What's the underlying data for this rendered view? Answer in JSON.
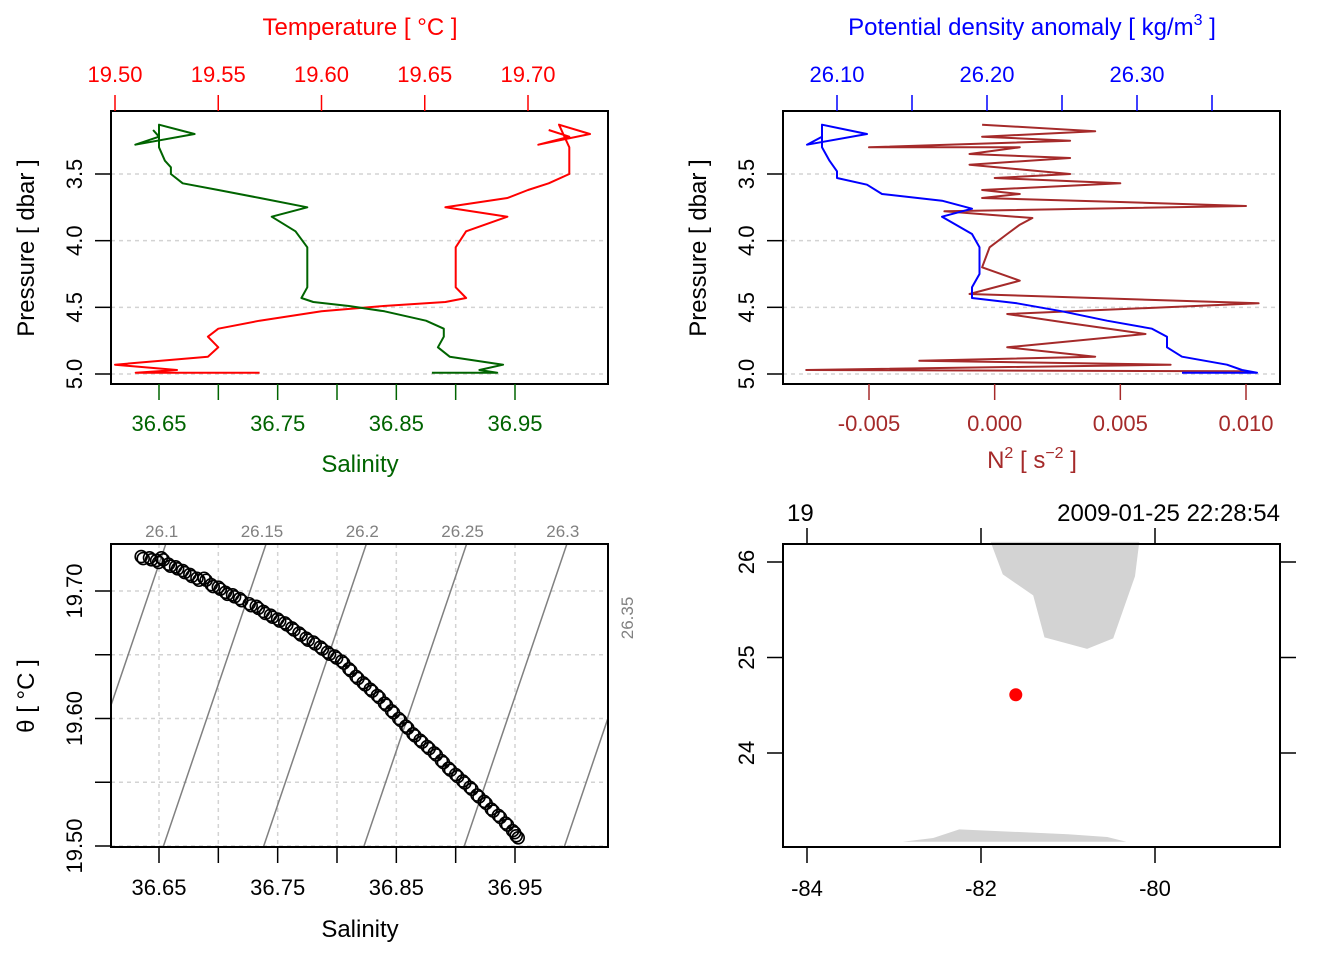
{
  "chart_data": [
    {
      "id": "profile-ts",
      "type": "line",
      "top_axis": {
        "label": "Temperature [ °C ]",
        "color": "#ff0000",
        "ticks": [
          19.5,
          19.55,
          19.6,
          19.65,
          19.7
        ],
        "tick_labels": [
          "19.50",
          "19.55",
          "19.60",
          "19.65",
          "19.70"
        ],
        "range": [
          19.4985,
          19.739
        ]
      },
      "bottom_axis": {
        "label": "Salinity",
        "color": "#006400",
        "ticks": [
          36.65,
          36.7,
          36.75,
          36.8,
          36.85,
          36.9,
          36.95
        ],
        "tick_labels": [
          "36.65",
          "",
          "36.75",
          "",
          "36.85",
          "",
          "36.95"
        ],
        "range": [
          36.6129,
          36.957
        ]
      },
      "left_axis": {
        "label": "Pressure [ dbar ]",
        "ticks": [
          3.5,
          4.0,
          4.5,
          5.0
        ],
        "tick_labels": [
          "3.5",
          "4.0",
          "4.5",
          "5.0"
        ],
        "range": [
          3.03,
          5.08
        ],
        "reversed": true
      },
      "grid": "horizontal-dashed",
      "series": [
        {
          "name": "Temperature",
          "color": "#ff0000",
          "axis": "top",
          "points": [
            [
              19.71,
              3.17
            ],
            [
              19.72,
              3.22
            ],
            [
              19.705,
              3.28
            ],
            [
              19.73,
              3.2
            ],
            [
              19.715,
              3.13
            ],
            [
              19.72,
              3.3
            ],
            [
              19.72,
              3.4
            ],
            [
              19.72,
              3.45
            ],
            [
              19.72,
              3.5
            ],
            [
              19.71,
              3.57
            ],
            [
              19.7,
              3.62
            ],
            [
              19.69,
              3.68
            ],
            [
              19.66,
              3.75
            ],
            [
              19.69,
              3.82
            ],
            [
              19.67,
              3.93
            ],
            [
              19.665,
              4.05
            ],
            [
              19.665,
              4.2
            ],
            [
              19.665,
              4.35
            ],
            [
              19.67,
              4.43
            ],
            [
              19.66,
              4.46
            ],
            [
              19.63,
              4.49
            ],
            [
              19.6,
              4.53
            ],
            [
              19.57,
              4.6
            ],
            [
              19.55,
              4.66
            ],
            [
              19.545,
              4.72
            ],
            [
              19.55,
              4.8
            ],
            [
              19.545,
              4.87
            ],
            [
              19.5,
              4.93
            ],
            [
              19.53,
              4.97
            ],
            [
              19.51,
              4.99
            ],
            [
              19.57,
              4.99
            ]
          ]
        },
        {
          "name": "Salinity",
          "color": "#006400",
          "axis": "bottom",
          "points": [
            [
              36.645,
              3.17
            ],
            [
              36.65,
              3.22
            ],
            [
              36.63,
              3.28
            ],
            [
              36.68,
              3.2
            ],
            [
              36.65,
              3.13
            ],
            [
              36.65,
              3.3
            ],
            [
              36.655,
              3.4
            ],
            [
              36.66,
              3.45
            ],
            [
              36.66,
              3.5
            ],
            [
              36.67,
              3.57
            ],
            [
              36.7,
              3.62
            ],
            [
              36.735,
              3.68
            ],
            [
              36.775,
              3.75
            ],
            [
              36.745,
              3.82
            ],
            [
              36.765,
              3.93
            ],
            [
              36.775,
              4.05
            ],
            [
              36.775,
              4.2
            ],
            [
              36.775,
              4.35
            ],
            [
              36.77,
              4.43
            ],
            [
              36.78,
              4.46
            ],
            [
              36.81,
              4.49
            ],
            [
              36.84,
              4.53
            ],
            [
              36.875,
              4.6
            ],
            [
              36.89,
              4.66
            ],
            [
              36.89,
              4.72
            ],
            [
              36.885,
              4.8
            ],
            [
              36.895,
              4.87
            ],
            [
              36.94,
              4.93
            ],
            [
              36.92,
              4.97
            ],
            [
              36.935,
              4.99
            ],
            [
              36.88,
              4.99
            ]
          ]
        }
      ]
    },
    {
      "id": "profile-density-n2",
      "type": "line",
      "top_axis": {
        "label": "Potential density anomaly [ kg/m³ ]",
        "color": "#0000ff",
        "ticks": [
          26.1,
          26.15,
          26.2,
          26.25,
          26.3,
          26.35
        ],
        "tick_labels": [
          "26.10",
          "",
          "26.20",
          "",
          "26.30",
          ""
        ],
        "range": [
          26.064,
          26.3953
        ]
      },
      "bottom_axis": {
        "label": "N² [ s⁻² ]",
        "color": "#a52a2a",
        "ticks": [
          -0.005,
          0.0,
          0.005,
          0.01
        ],
        "tick_labels": [
          "-0.005",
          "0.000",
          "0.005",
          "0.010"
        ],
        "range": [
          -0.00845,
          0.01132
        ]
      },
      "left_axis": {
        "label": "Pressure [ dbar ]",
        "ticks": [
          3.5,
          4.0,
          4.5,
          5.0
        ],
        "tick_labels": [
          "3.5",
          "4.0",
          "4.5",
          "5.0"
        ],
        "range": [
          3.03,
          5.08
        ],
        "reversed": true
      },
      "grid": "horizontal-dashed",
      "series": [
        {
          "name": "Potential density anomaly",
          "color": "#0000ff",
          "axis": "top",
          "points": [
            [
              26.09,
              3.17
            ],
            [
              26.09,
              3.22
            ],
            [
              26.08,
              3.28
            ],
            [
              26.12,
              3.2
            ],
            [
              26.09,
              3.13
            ],
            [
              26.09,
              3.3
            ],
            [
              26.095,
              3.4
            ],
            [
              26.1,
              3.48
            ],
            [
              26.1,
              3.53
            ],
            [
              26.12,
              3.58
            ],
            [
              26.13,
              3.65
            ],
            [
              26.17,
              3.7
            ],
            [
              26.19,
              3.76
            ],
            [
              26.17,
              3.82
            ],
            [
              26.19,
              3.95
            ],
            [
              26.195,
              4.05
            ],
            [
              26.195,
              4.25
            ],
            [
              26.19,
              4.35
            ],
            [
              26.19,
              4.43
            ],
            [
              26.22,
              4.47
            ],
            [
              26.25,
              4.53
            ],
            [
              26.28,
              4.6
            ],
            [
              26.31,
              4.66
            ],
            [
              26.32,
              4.72
            ],
            [
              26.32,
              4.8
            ],
            [
              26.33,
              4.87
            ],
            [
              26.36,
              4.93
            ],
            [
              26.37,
              4.97
            ],
            [
              26.38,
              4.99
            ],
            [
              26.33,
              4.99
            ]
          ]
        },
        {
          "name": "N2",
          "color": "#a52a2a",
          "axis": "bottom",
          "points": [
            [
              -0.0005,
              3.13
            ],
            [
              0.004,
              3.18
            ],
            [
              -0.0005,
              3.22
            ],
            [
              0.003,
              3.25
            ],
            [
              -0.005,
              3.3
            ],
            [
              0.001,
              3.3
            ],
            [
              -0.001,
              3.35
            ],
            [
              0.003,
              3.38
            ],
            [
              -0.001,
              3.43
            ],
            [
              0.003,
              3.5
            ],
            [
              0.0,
              3.53
            ],
            [
              0.005,
              3.57
            ],
            [
              -0.0005,
              3.62
            ],
            [
              0.001,
              3.65
            ],
            [
              -0.0005,
              3.68
            ],
            [
              0.005,
              3.71
            ],
            [
              0.01,
              3.74
            ],
            [
              -0.002,
              3.78
            ],
            [
              0.0015,
              3.83
            ],
            [
              0.001,
              3.88
            ],
            [
              0.0005,
              3.95
            ],
            [
              -0.0002,
              4.05
            ],
            [
              -0.0005,
              4.2
            ],
            [
              0.001,
              4.3
            ],
            [
              -0.001,
              4.4
            ],
            [
              0.0105,
              4.47
            ],
            [
              0.0005,
              4.55
            ],
            [
              0.003,
              4.62
            ],
            [
              0.006,
              4.7
            ],
            [
              0.0005,
              4.8
            ],
            [
              0.004,
              4.87
            ],
            [
              -0.003,
              4.9
            ],
            [
              0.007,
              4.93
            ],
            [
              -0.0075,
              4.97
            ],
            [
              0.01,
              4.98
            ]
          ]
        }
      ]
    },
    {
      "id": "ts-diagram",
      "type": "scatter",
      "xlabel": "Salinity",
      "ylabel": "θ [ °C ]",
      "x_ticks": [
        36.65,
        36.7,
        36.75,
        36.8,
        36.85,
        36.9,
        36.95
      ],
      "x_tick_labels": [
        "36.65",
        "",
        "36.75",
        "",
        "36.85",
        "",
        "36.95"
      ],
      "y_ticks": [
        19.5,
        19.55,
        19.6,
        19.65,
        19.7
      ],
      "y_tick_labels": [
        "19.50",
        "",
        "19.60",
        "",
        "19.70"
      ],
      "xlim": [
        36.6129,
        36.957
      ],
      "ylim": [
        19.4985,
        19.739
      ],
      "grid": "dashed",
      "isopycnals": {
        "color": "#808080",
        "levels": [
          26.1,
          26.15,
          26.2,
          26.25,
          26.3,
          26.35
        ],
        "labels": [
          "26.1",
          "26.15",
          "26.2",
          "26.25",
          "26.3",
          "26.35"
        ]
      },
      "points": [
        [
          36.635,
          19.727
        ],
        [
          36.642,
          19.726
        ],
        [
          36.648,
          19.724
        ],
        [
          36.652,
          19.726
        ],
        [
          36.658,
          19.721
        ],
        [
          36.664,
          19.719
        ],
        [
          36.67,
          19.716
        ],
        [
          36.676,
          19.713
        ],
        [
          36.682,
          19.71
        ],
        [
          36.688,
          19.71
        ],
        [
          36.694,
          19.705
        ],
        [
          36.7,
          19.703
        ],
        [
          36.706,
          19.699
        ],
        [
          36.712,
          19.697
        ],
        [
          36.718,
          19.694
        ],
        [
          36.726,
          19.69
        ],
        [
          36.732,
          19.688
        ],
        [
          36.738,
          19.684
        ],
        [
          36.744,
          19.681
        ],
        [
          36.75,
          19.678
        ],
        [
          36.756,
          19.675
        ],
        [
          36.762,
          19.671
        ],
        [
          36.768,
          19.667
        ],
        [
          36.774,
          19.663
        ],
        [
          36.78,
          19.66
        ],
        [
          36.786,
          19.656
        ],
        [
          36.792,
          19.652
        ],
        [
          36.798,
          19.649
        ],
        [
          36.804,
          19.645
        ],
        [
          36.81,
          19.639
        ],
        [
          36.816,
          19.633
        ],
        [
          36.822,
          19.628
        ],
        [
          36.828,
          19.623
        ],
        [
          36.834,
          19.618
        ],
        [
          36.84,
          19.612
        ],
        [
          36.846,
          19.606
        ],
        [
          36.852,
          19.6
        ],
        [
          36.858,
          19.594
        ],
        [
          36.864,
          19.588
        ],
        [
          36.87,
          19.583
        ],
        [
          36.876,
          19.578
        ],
        [
          36.882,
          19.573
        ],
        [
          36.888,
          19.567
        ],
        [
          36.894,
          19.561
        ],
        [
          36.9,
          19.556
        ],
        [
          36.906,
          19.551
        ],
        [
          36.912,
          19.546
        ],
        [
          36.918,
          19.54
        ],
        [
          36.924,
          19.535
        ],
        [
          36.93,
          19.529
        ],
        [
          36.936,
          19.524
        ],
        [
          36.942,
          19.518
        ],
        [
          36.948,
          19.512
        ],
        [
          36.951,
          19.508
        ]
      ]
    },
    {
      "id": "station-map",
      "type": "scatter",
      "top_labels": {
        "left": "19",
        "right": "2009-01-25 22:28:54"
      },
      "x_ticks": [
        -84,
        -82,
        -80
      ],
      "x_tick_labels": [
        "-84",
        "-82",
        "-80"
      ],
      "y_ticks": [
        24,
        25,
        26
      ],
      "y_tick_labels": [
        "24",
        "25",
        "26"
      ],
      "xlim": [
        -84.28,
        -78.57
      ],
      "ylim": [
        23.07,
        26.21
      ],
      "land_color": "#d3d3d3",
      "station": {
        "lon": -81.6,
        "lat": 24.61,
        "color": "#ff0000"
      },
      "land": [
        [
          [
            -81.89,
            26.21
          ],
          [
            -81.75,
            25.87
          ],
          [
            -81.4,
            25.65
          ],
          [
            -81.27,
            25.21
          ],
          [
            -80.78,
            25.09
          ],
          [
            -80.48,
            25.2
          ],
          [
            -80.23,
            25.85
          ],
          [
            -80.18,
            26.21
          ]
        ],
        [
          [
            -82.9,
            23.07
          ],
          [
            -82.55,
            23.11
          ],
          [
            -82.25,
            23.2
          ],
          [
            -81.0,
            23.15
          ],
          [
            -80.55,
            23.12
          ],
          [
            -80.33,
            23.07
          ]
        ]
      ]
    }
  ]
}
